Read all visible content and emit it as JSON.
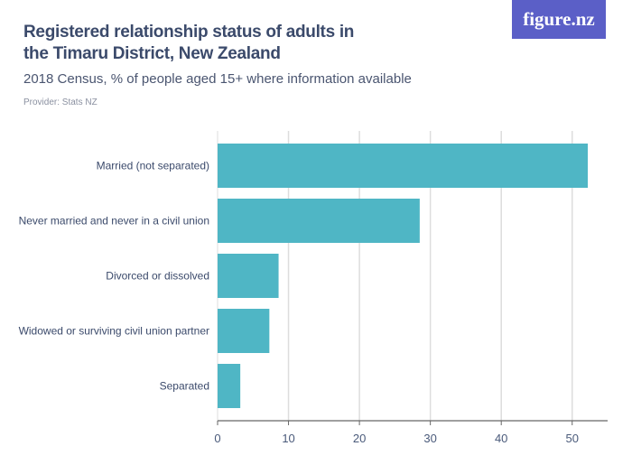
{
  "header": {
    "title": "Registered relationship status of adults in the Timaru District, New Zealand",
    "subtitle": "2018 Census, % of people aged 15+ where information available",
    "provider": "Provider: Stats NZ",
    "logo": "figure.nz"
  },
  "chart_data": {
    "type": "bar",
    "orientation": "horizontal",
    "categories": [
      "Married (not separated)",
      "Never married and never in a civil union",
      "Divorced or dissolved",
      "Widowed or surviving civil union partner",
      "Separated"
    ],
    "values": [
      52.2,
      28.5,
      8.6,
      7.3,
      3.2
    ],
    "xlim": [
      0,
      55
    ],
    "ticks": [
      0,
      10,
      20,
      30,
      40,
      50
    ],
    "grid": true,
    "colors": {
      "bar": "#4fb6c5",
      "grid": "#dddddd",
      "axis": "#666666"
    }
  }
}
